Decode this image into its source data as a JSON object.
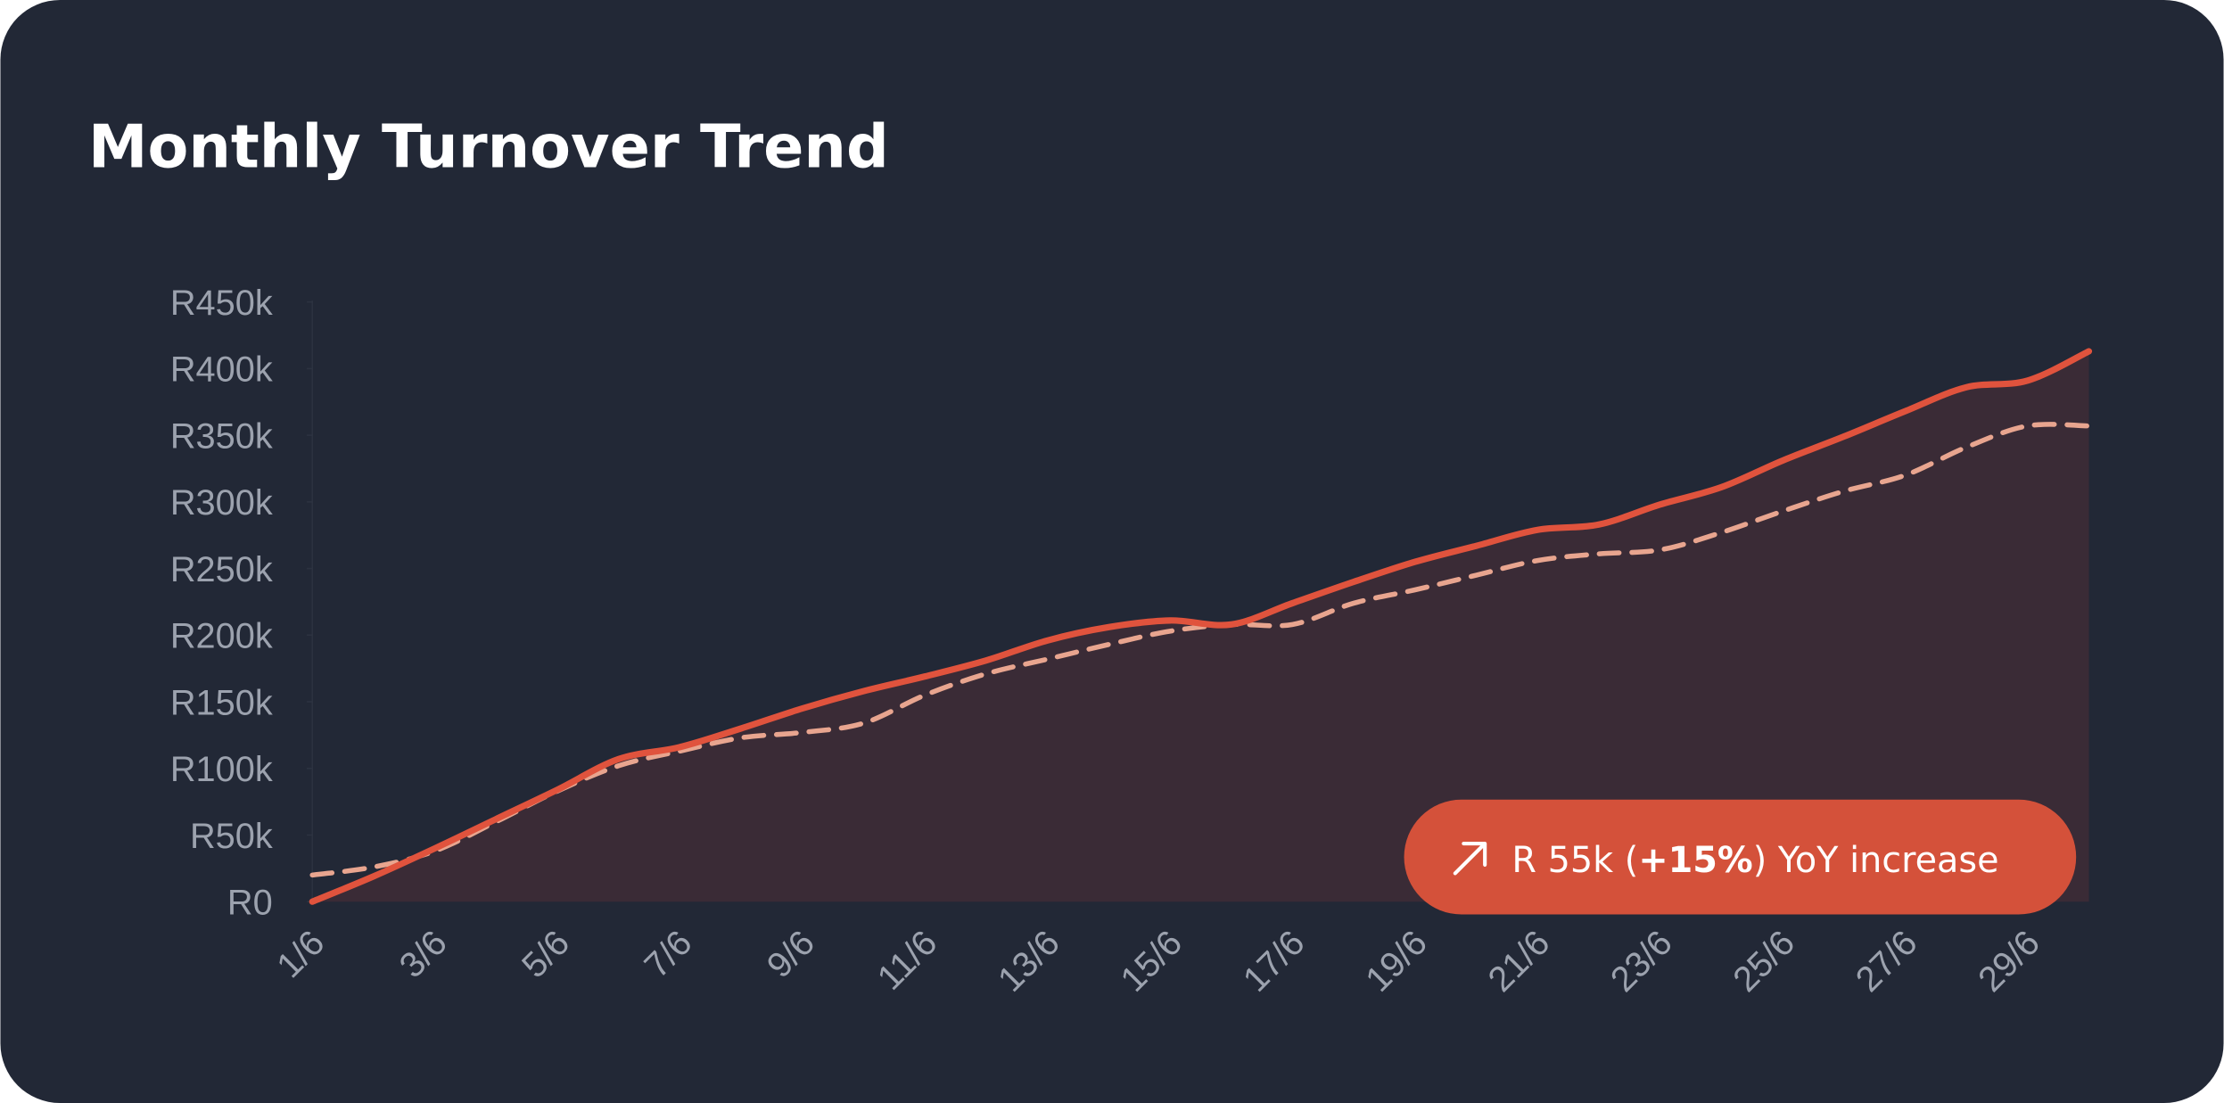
{
  "chart_data": {
    "type": "line",
    "title": "Monthly Turnover Trend",
    "categories": [
      "1/6",
      null,
      "3/6",
      null,
      "5/6",
      null,
      "7/6",
      null,
      "9/6",
      null,
      "11/6",
      null,
      "13/6",
      null,
      "15/6",
      null,
      "17/6",
      null,
      "19/6",
      null,
      "21/6",
      null,
      "23/6",
      null,
      "25/6",
      null,
      "27/6",
      null,
      "29/6",
      null
    ],
    "series": [
      {
        "color": "#e0533d",
        "area": true,
        "values": [
          0,
          19000,
          40000,
          62000,
          84000,
          107000,
          116000,
          130000,
          145000,
          158000,
          169000,
          181000,
          196000,
          206000,
          211000,
          208000,
          224000,
          240000,
          255000,
          267000,
          279000,
          283000,
          298000,
          311000,
          331000,
          349000,
          368000,
          386000,
          391000,
          413000
        ]
      },
      {
        "color": "#e8a58f",
        "dashed": true,
        "values": [
          20000,
          26000,
          38000,
          60000,
          83000,
          102000,
          113000,
          123000,
          127000,
          134000,
          155000,
          171000,
          182000,
          193000,
          203000,
          208000,
          208000,
          224000,
          234000,
          245000,
          256000,
          261000,
          264000,
          277000,
          293000,
          308000,
          320000,
          341000,
          357000,
          357000
        ]
      }
    ],
    "ylim": [
      0,
      450000
    ],
    "yticks": [
      {
        "value": 0,
        "label": "R0"
      },
      {
        "value": 50000,
        "label": "R50k"
      },
      {
        "value": 100000,
        "label": "R100k"
      },
      {
        "value": 150000,
        "label": "R150k"
      },
      {
        "value": 200000,
        "label": "R200k"
      },
      {
        "value": 250000,
        "label": "R250k"
      },
      {
        "value": 300000,
        "label": "R300k"
      },
      {
        "value": 350000,
        "label": "R350k"
      },
      {
        "value": 400000,
        "label": "R400k"
      },
      {
        "value": 450000,
        "label": "R450k"
      }
    ],
    "annotation": {
      "prefix": "R 55k (",
      "highlight": "+15%",
      "suffix": ") YoY increase"
    }
  }
}
